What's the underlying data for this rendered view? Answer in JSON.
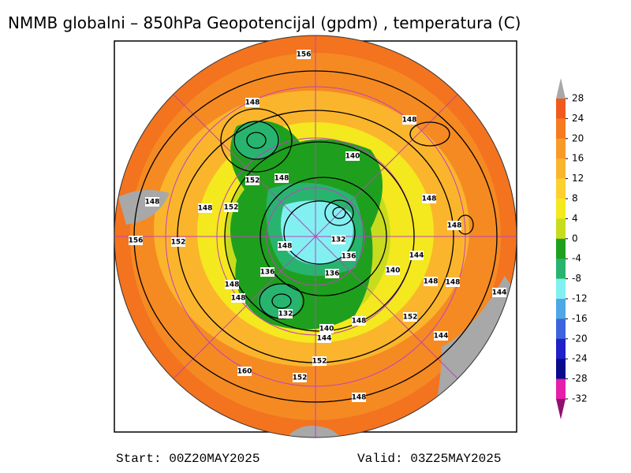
{
  "title": "NMMB globalni – 850hPa Geopotencijal (gpdm) , temperatura (C)",
  "start": "Start: 00Z20MAY2025",
  "valid": "Valid: 03Z25MAY2025",
  "legend": {
    "labels": [
      28,
      24,
      20,
      16,
      12,
      8,
      4,
      0,
      -4,
      -8,
      -12,
      -16,
      -20,
      -24,
      -28,
      -32
    ],
    "colors": [
      "#f05a1e",
      "#f57a20",
      "#f99a28",
      "#fbb52c",
      "#fdd030",
      "#f4e81e",
      "#c8dc1e",
      "#1ea01e",
      "#28b46e",
      "#82f0f0",
      "#4fa8e6",
      "#3c64dc",
      "#2020c8",
      "#0a0a8c",
      "#e61eaa"
    ],
    "over_color": "#a8a8a8",
    "under_color": "#901070"
  },
  "contour_labels": [
    156,
    148,
    148,
    140,
    152,
    148,
    148,
    148,
    148,
    152,
    148,
    132,
    156,
    152,
    148,
    136,
    144,
    140,
    136,
    136,
    148,
    148,
    148,
    148,
    144,
    132,
    148,
    152,
    140,
    144,
    144,
    152,
    160,
    152,
    148
  ]
}
